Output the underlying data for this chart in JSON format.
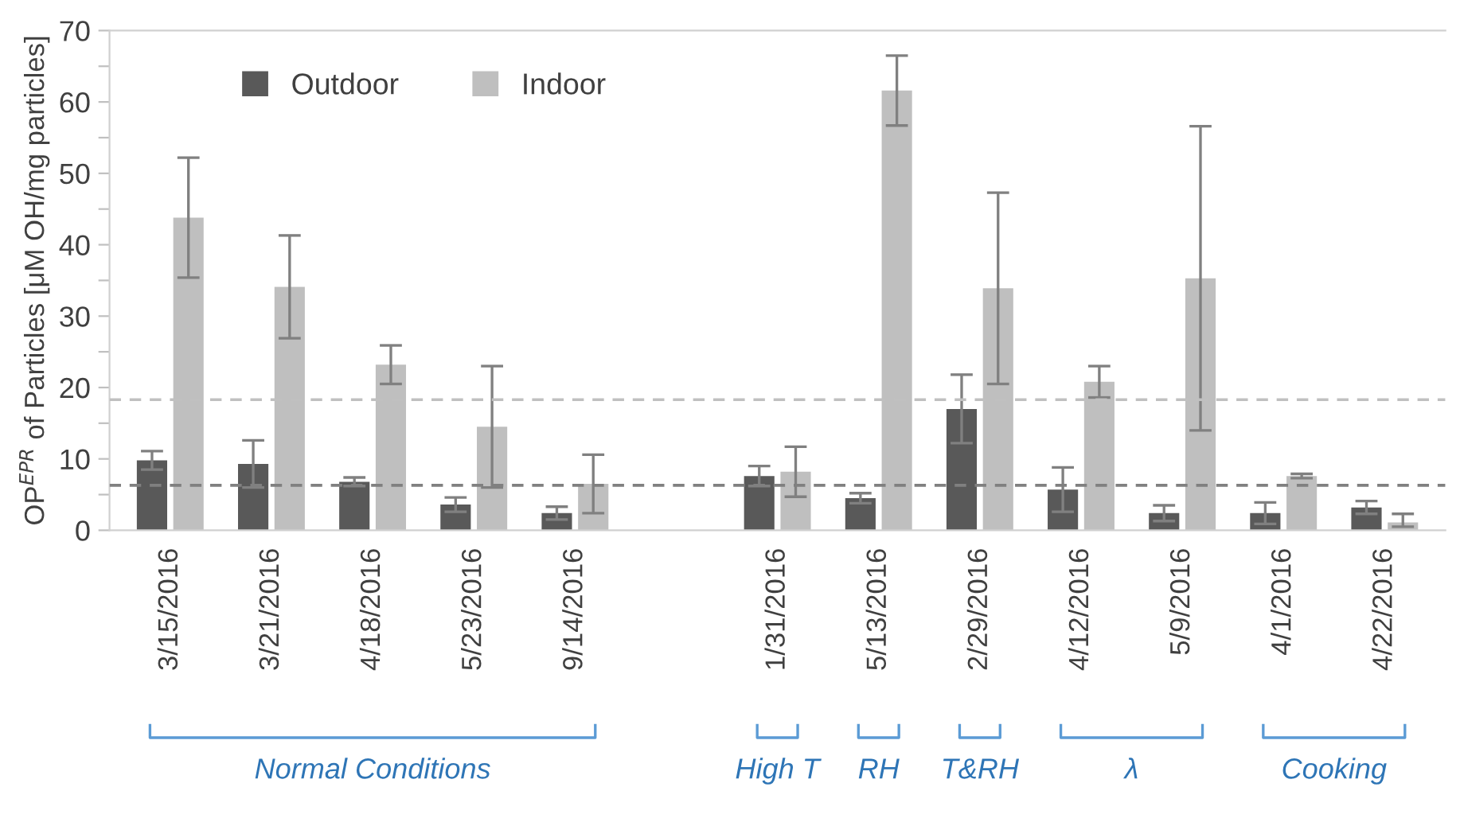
{
  "chart_data": {
    "type": "bar",
    "ylabel": "OP$^{EPR}$ of Particles [μM OH/mg particles]",
    "categories": [
      "3/15/2016",
      "3/21/2016",
      "4/18/2016",
      "5/23/2016",
      "9/14/2016",
      null,
      "1/31/2016",
      "5/13/2016",
      "2/29/2016",
      "4/12/2016",
      "5/9/2016",
      "4/1/2016",
      "4/22/2016"
    ],
    "series": [
      {
        "name": "Outdoor",
        "color": "#595959",
        "values": [
          9.8,
          9.3,
          6.8,
          3.6,
          2.4,
          null,
          7.6,
          4.5,
          17.0,
          5.7,
          2.4,
          2.4,
          3.2
        ],
        "errors": [
          1.3,
          3.3,
          0.6,
          1.0,
          0.9,
          null,
          1.4,
          0.7,
          4.8,
          3.1,
          1.1,
          1.5,
          0.9
        ]
      },
      {
        "name": "Indoor",
        "color": "#bfbfbf",
        "values": [
          43.8,
          34.1,
          23.2,
          14.5,
          6.5,
          null,
          8.2,
          61.6,
          33.9,
          20.8,
          35.3,
          7.6,
          1.1
        ],
        "errors": [
          8.4,
          7.2,
          2.7,
          8.5,
          4.1,
          null,
          3.5,
          4.9,
          13.4,
          2.2,
          21.3,
          0.3,
          [
            0.5,
            2.3
          ]
        ]
      }
    ],
    "ylim": [
      0,
      70
    ],
    "yticks": [
      0,
      {
        "value": 5,
        "label": null
      },
      10,
      {
        "value": 15,
        "label": null
      },
      20,
      {
        "value": 25,
        "label": null
      },
      30,
      {
        "value": 35,
        "label": null
      },
      40,
      {
        "value": 45,
        "label": null
      },
      50,
      {
        "value": 55,
        "label": null
      },
      60,
      {
        "value": 65,
        "label": null
      },
      70
    ],
    "ref_lines": [
      {
        "axis": "y",
        "value": 18.3,
        "color": "#c0c0c0",
        "line_style": "dashed"
      },
      {
        "axis": "y",
        "value": 6.3,
        "color": "#808080",
        "line_style": "dashed"
      }
    ],
    "annotations": [
      "Normal Conditions",
      "High T",
      "RH",
      "T&RH",
      "λ",
      "Cooking"
    ],
    "legend": "top left",
    "grid": false
  }
}
